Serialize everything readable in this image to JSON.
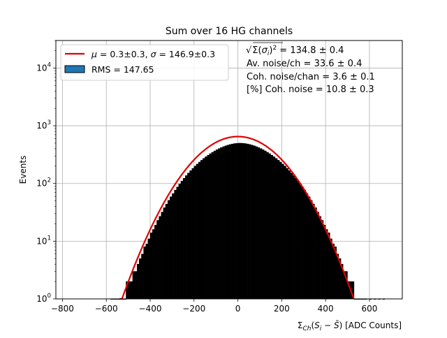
{
  "chart_data": {
    "type": "histogram",
    "title": "Sum over 16 HG channels",
    "xlabel": "Σ_Ch(S_i − S̄) [ADC Counts]",
    "ylabel": "Events",
    "xlim": [
      -830,
      750
    ],
    "ylim": [
      1,
      30000
    ],
    "yscale": "log",
    "grid": true,
    "x_ticks": [
      -800,
      -600,
      -400,
      -200,
      0,
      200,
      400,
      600
    ],
    "y_ticks": [
      {
        "value": 1,
        "label": "10",
        "exp": "0"
      },
      {
        "value": 10,
        "label": "10",
        "exp": "1"
      },
      {
        "value": 100,
        "label": "10",
        "exp": "2"
      },
      {
        "value": 1000,
        "label": "10",
        "exp": "3"
      },
      {
        "value": 10000,
        "label": "10",
        "exp": "4"
      }
    ],
    "histogram": {
      "name": "RMS = 147.65",
      "color": "#000000",
      "legend_patch_color": "#1f77b4",
      "bin_width": 10,
      "bins": [
        [
          -580,
          1
        ],
        [
          -570,
          1
        ],
        [
          -560,
          1
        ],
        [
          -550,
          1
        ],
        [
          -540,
          1
        ],
        [
          -530,
          1
        ],
        [
          -520,
          1
        ],
        [
          -510,
          2
        ],
        [
          -500,
          2
        ],
        [
          -490,
          2
        ],
        [
          -480,
          3
        ],
        [
          -470,
          3
        ],
        [
          -460,
          4
        ],
        [
          -450,
          5
        ],
        [
          -440,
          6
        ],
        [
          -430,
          8
        ],
        [
          -420,
          9
        ],
        [
          -410,
          11
        ],
        [
          -400,
          14
        ],
        [
          -390,
          16
        ],
        [
          -380,
          19
        ],
        [
          -370,
          23
        ],
        [
          -360,
          27
        ],
        [
          -350,
          32
        ],
        [
          -340,
          38
        ],
        [
          -330,
          44
        ],
        [
          -320,
          51
        ],
        [
          -310,
          59
        ],
        [
          -300,
          67
        ],
        [
          -290,
          77
        ],
        [
          -280,
          87
        ],
        [
          -270,
          98
        ],
        [
          -260,
          110
        ],
        [
          -250,
          123
        ],
        [
          -240,
          137
        ],
        [
          -230,
          152
        ],
        [
          -220,
          167
        ],
        [
          -210,
          183
        ],
        [
          -200,
          200
        ],
        [
          -190,
          217
        ],
        [
          -180,
          235
        ],
        [
          -170,
          253
        ],
        [
          -160,
          272
        ],
        [
          -150,
          291
        ],
        [
          -140,
          310
        ],
        [
          -130,
          329
        ],
        [
          -120,
          348
        ],
        [
          -110,
          367
        ],
        [
          -100,
          385
        ],
        [
          -90,
          403
        ],
        [
          -80,
          420
        ],
        [
          -70,
          435
        ],
        [
          -60,
          450
        ],
        [
          -50,
          463
        ],
        [
          -40,
          474
        ],
        [
          -30,
          484
        ],
        [
          -20,
          492
        ],
        [
          -10,
          497
        ],
        [
          0,
          500
        ],
        [
          10,
          500
        ],
        [
          20,
          497
        ],
        [
          30,
          492
        ],
        [
          40,
          484
        ],
        [
          50,
          474
        ],
        [
          60,
          463
        ],
        [
          70,
          450
        ],
        [
          80,
          435
        ],
        [
          90,
          420
        ],
        [
          100,
          403
        ],
        [
          110,
          385
        ],
        [
          120,
          367
        ],
        [
          130,
          348
        ],
        [
          140,
          329
        ],
        [
          150,
          310
        ],
        [
          160,
          291
        ],
        [
          170,
          272
        ],
        [
          180,
          253
        ],
        [
          190,
          235
        ],
        [
          200,
          217
        ],
        [
          210,
          200
        ],
        [
          220,
          183
        ],
        [
          230,
          167
        ],
        [
          240,
          152
        ],
        [
          250,
          137
        ],
        [
          260,
          123
        ],
        [
          270,
          110
        ],
        [
          280,
          98
        ],
        [
          290,
          87
        ],
        [
          300,
          77
        ],
        [
          310,
          67
        ],
        [
          320,
          59
        ],
        [
          330,
          51
        ],
        [
          340,
          44
        ],
        [
          350,
          38
        ],
        [
          360,
          32
        ],
        [
          370,
          27
        ],
        [
          380,
          23
        ],
        [
          390,
          19
        ],
        [
          400,
          16
        ],
        [
          410,
          14
        ],
        [
          420,
          11
        ],
        [
          430,
          9
        ],
        [
          440,
          8
        ],
        [
          450,
          6
        ],
        [
          460,
          5
        ],
        [
          470,
          4
        ],
        [
          480,
          3
        ],
        [
          490,
          3
        ],
        [
          500,
          2
        ],
        [
          510,
          2
        ],
        [
          520,
          2
        ],
        [
          530,
          1
        ],
        [
          540,
          1
        ],
        [
          550,
          1
        ],
        [
          560,
          1
        ],
        [
          570,
          1
        ],
        [
          580,
          1
        ],
        [
          600,
          1
        ],
        [
          620,
          1
        ],
        [
          640,
          1
        ],
        [
          660,
          1
        ]
      ]
    },
    "fit": {
      "name": "μ = 0.3±0.3, σ = 146.9±0.3",
      "color": "#e00000",
      "mu": 0.3,
      "sigma": 146.9,
      "peak": 650,
      "x_range": [
        -540,
        530
      ]
    },
    "legend": {
      "location": "upper-left",
      "entries": [
        {
          "label_html": "<tspan font-style='italic'>μ</tspan> = 0.3±0.3, <tspan font-style='italic'>σ</tspan> = 146.9±0.3",
          "kind": "line",
          "color": "#e00000"
        },
        {
          "label": "RMS = 147.65",
          "kind": "patch",
          "color": "#1f77b4"
        }
      ]
    },
    "annotations": [
      "√Σ(σ_i)² = 134.8 ± 0.4",
      "Av. noise/ch  = 33.6 ± 0.4",
      "Coh. noise/chan  = 3.6 ± 0.1",
      "[%] Coh. noise  = 10.8 ± 0.3"
    ]
  }
}
